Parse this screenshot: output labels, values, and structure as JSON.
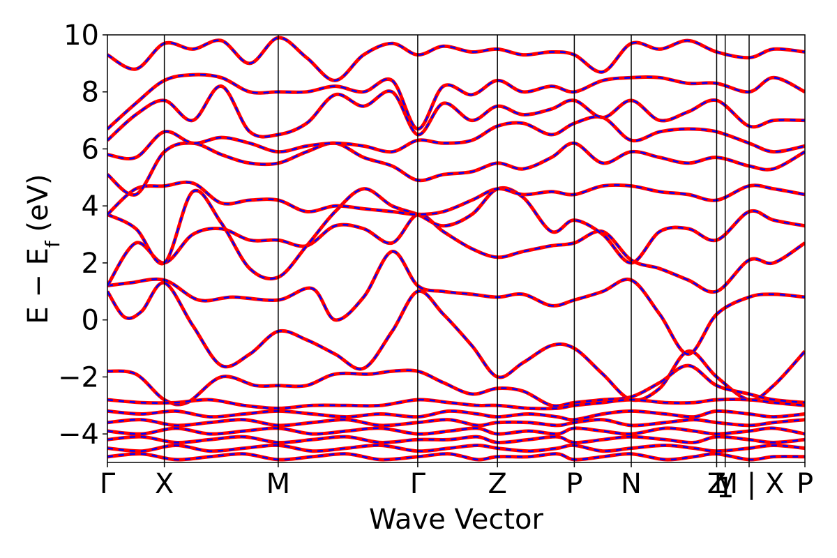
{
  "chart_data": {
    "type": "line",
    "xlabel": "Wave Vector",
    "ylabel_main": "E − E",
    "ylabel_sub": "f",
    "ylabel_unit": " (eV)",
    "ylim": [
      -5,
      10
    ],
    "xlim": [
      0,
      12.25
    ],
    "yticks": [
      10,
      8,
      6,
      4,
      2,
      0,
      -2,
      -4
    ],
    "ytick_labels": [
      "10",
      "8",
      "6",
      "4",
      "2",
      "0",
      "−2",
      "−4"
    ],
    "kpoints": [
      {
        "label": "Γ",
        "x": 0
      },
      {
        "label": "X",
        "x": 1.0
      },
      {
        "label": "M",
        "x": 3.0
      },
      {
        "label": "Γ",
        "x": 5.45
      },
      {
        "label": "Z",
        "x": 6.85
      },
      {
        "label": "P",
        "x": 8.2
      },
      {
        "label": "N",
        "x": 9.2
      },
      {
        "label": "Z",
        "x": 10.7
      },
      {
        "label": "1",
        "x": 10.85
      },
      {
        "label": "M | X",
        "x": 11.27
      },
      {
        "label": "P",
        "x": 12.25
      }
    ],
    "colors": {
      "solid": "#ff0000",
      "dashed": "#0000ff",
      "vline": "#000000"
    },
    "series": [
      {
        "x": [
          0,
          0.3,
          0.6,
          1.0,
          1.5,
          2.0,
          2.5,
          3.0,
          3.5,
          4.0,
          4.5,
          5.0,
          5.45,
          5.9,
          6.4,
          6.85,
          7.3,
          7.8,
          8.2,
          8.7,
          9.2,
          9.7,
          10.2,
          10.7,
          11.27,
          11.7,
          12.25
        ],
        "y": [
          1.0,
          0.1,
          0.3,
          1.3,
          -0.2,
          -1.6,
          -1.2,
          -0.4,
          -0.7,
          -1.2,
          -1.7,
          -0.4,
          1.0,
          0.2,
          -0.9,
          -2.0,
          -1.5,
          -0.9,
          -1.0,
          -1.9,
          -2.8,
          -2.4,
          -1.1,
          -2.0,
          -2.8,
          -2.3,
          -1.1
        ]
      },
      {
        "x": [
          0,
          0.4,
          1.0,
          1.6,
          2.2,
          3.0,
          3.6,
          4.0,
          4.5,
          5.0,
          5.45,
          5.9,
          6.4,
          6.85,
          7.3,
          7.8,
          8.2,
          8.7,
          9.2,
          9.7,
          10.2,
          10.7,
          11.27,
          11.7,
          12.25
        ],
        "y": [
          1.2,
          1.3,
          1.4,
          0.7,
          0.8,
          0.7,
          1.1,
          0.0,
          0.8,
          2.4,
          1.2,
          1.0,
          0.9,
          0.8,
          0.9,
          0.5,
          0.7,
          1.0,
          1.4,
          0.2,
          -1.2,
          0.2,
          0.8,
          0.9,
          0.8
        ]
      },
      {
        "x": [
          0,
          0.5,
          1.0,
          1.4,
          2.0,
          2.6,
          3.0,
          3.5,
          4.0,
          4.6,
          5.0,
          5.45,
          5.9,
          6.4,
          6.85,
          7.3,
          7.8,
          8.2,
          8.7,
          9.2,
          9.7,
          10.2,
          10.7,
          11.27,
          11.7,
          12.25
        ],
        "y": [
          -1.8,
          -1.9,
          -2.8,
          -2.9,
          -2.0,
          -2.3,
          -2.3,
          -2.3,
          -1.9,
          -1.9,
          -1.8,
          -1.8,
          -2.2,
          -2.6,
          -2.4,
          -2.5,
          -3.0,
          -2.9,
          -2.8,
          -2.7,
          -2.2,
          -1.6,
          -2.3,
          -2.6,
          -2.8,
          -2.9
        ]
      },
      {
        "x": [
          0,
          0.5,
          1.0,
          1.5,
          2.0,
          2.5,
          3.0,
          3.5,
          4.0,
          4.5,
          5.0,
          5.45,
          5.9,
          6.4,
          6.85,
          7.3,
          7.8,
          8.2,
          8.7,
          9.2,
          9.7,
          10.2,
          10.7,
          11.27,
          11.7,
          12.25
        ],
        "y": [
          1.2,
          2.7,
          2.0,
          3.0,
          3.2,
          2.8,
          2.8,
          2.6,
          3.3,
          3.2,
          2.7,
          3.7,
          3.1,
          2.5,
          2.2,
          2.4,
          2.6,
          2.7,
          3.1,
          2.1,
          1.8,
          1.4,
          1.0,
          2.1,
          2.0,
          2.7
        ]
      },
      {
        "x": [
          0,
          0.5,
          1.0,
          1.5,
          2.0,
          2.5,
          3.0,
          3.5,
          4.0,
          4.5,
          5.0,
          5.45,
          5.9,
          6.4,
          6.85,
          7.3,
          7.8,
          8.2,
          8.7,
          9.2,
          9.7,
          10.2,
          10.7,
          11.27,
          11.7,
          12.25
        ],
        "y": [
          3.7,
          3.2,
          2.0,
          4.5,
          3.4,
          1.8,
          1.5,
          2.6,
          3.8,
          4.6,
          4.0,
          3.7,
          3.3,
          3.7,
          4.6,
          4.3,
          3.1,
          3.5,
          3.0,
          2.0,
          3.1,
          3.2,
          2.8,
          3.8,
          3.5,
          3.3
        ]
      },
      {
        "x": [
          0,
          0.5,
          1.0,
          1.5,
          2.0,
          2.5,
          3.0,
          3.5,
          4.0,
          4.5,
          5.0,
          5.45,
          5.9,
          6.4,
          6.85,
          7.3,
          7.8,
          8.2,
          8.7,
          9.2,
          9.7,
          10.2,
          10.7,
          11.27,
          11.7,
          12.25
        ],
        "y": [
          3.7,
          4.6,
          4.7,
          4.8,
          4.1,
          4.2,
          4.2,
          3.8,
          4.0,
          3.9,
          3.8,
          3.7,
          3.8,
          4.2,
          4.6,
          4.4,
          4.5,
          4.4,
          4.7,
          4.7,
          4.5,
          4.4,
          4.2,
          4.7,
          4.6,
          4.4
        ]
      },
      {
        "x": [
          0,
          0.5,
          1.0,
          1.5,
          2.0,
          2.5,
          3.0,
          3.5,
          4.0,
          4.5,
          5.0,
          5.45,
          5.9,
          6.4,
          6.85,
          7.3,
          7.8,
          8.2,
          8.7,
          9.2,
          9.7,
          10.2,
          10.7,
          11.27,
          11.7,
          12.25
        ],
        "y": [
          5.1,
          4.4,
          5.9,
          6.2,
          5.8,
          5.5,
          5.5,
          5.9,
          6.2,
          5.7,
          5.4,
          4.9,
          5.1,
          5.2,
          5.5,
          5.3,
          5.7,
          6.2,
          5.5,
          5.9,
          5.7,
          5.5,
          5.7,
          5.4,
          5.3,
          5.9
        ]
      },
      {
        "x": [
          0,
          0.5,
          1.0,
          1.5,
          2.0,
          2.5,
          3.0,
          3.5,
          4.0,
          4.5,
          5.0,
          5.45,
          5.9,
          6.4,
          6.85,
          7.3,
          7.8,
          8.2,
          8.7,
          9.2,
          9.7,
          10.2,
          10.7,
          11.27,
          11.7,
          12.25
        ],
        "y": [
          5.8,
          5.7,
          6.6,
          6.2,
          6.4,
          6.2,
          5.9,
          6.1,
          6.2,
          6.1,
          5.9,
          6.3,
          6.2,
          6.3,
          6.8,
          6.9,
          6.5,
          6.9,
          7.1,
          6.3,
          6.6,
          6.7,
          6.6,
          6.2,
          5.9,
          6.1
        ]
      },
      {
        "x": [
          0,
          0.5,
          1.0,
          1.5,
          2.0,
          2.5,
          3.0,
          3.5,
          4.0,
          4.5,
          5.0,
          5.45,
          5.9,
          6.4,
          6.85,
          7.3,
          7.8,
          8.2,
          8.7,
          9.2,
          9.7,
          10.2,
          10.7,
          11.27,
          11.7,
          12.25
        ],
        "y": [
          6.3,
          7.2,
          7.7,
          7.0,
          8.2,
          6.6,
          6.5,
          6.9,
          7.9,
          7.5,
          8.0,
          6.5,
          7.6,
          7.0,
          7.5,
          7.2,
          7.4,
          7.7,
          7.1,
          7.7,
          7.0,
          7.3,
          7.7,
          6.8,
          7.0,
          7.0
        ]
      },
      {
        "x": [
          0,
          0.5,
          1.0,
          1.5,
          2.0,
          2.5,
          3.0,
          3.5,
          4.0,
          4.5,
          5.0,
          5.45,
          5.9,
          6.4,
          6.85,
          7.3,
          7.8,
          8.2,
          8.7,
          9.2,
          9.7,
          10.2,
          10.7,
          11.27,
          11.7,
          12.25
        ],
        "y": [
          6.7,
          7.6,
          8.4,
          8.6,
          8.5,
          8.0,
          8.0,
          8.0,
          8.2,
          8.0,
          8.4,
          6.7,
          8.2,
          7.9,
          8.4,
          8.0,
          8.2,
          8.0,
          8.4,
          8.5,
          8.5,
          8.3,
          8.3,
          8.0,
          8.5,
          8.0
        ]
      },
      {
        "x": [
          0,
          0.5,
          1.0,
          1.5,
          2.0,
          2.5,
          3.0,
          3.5,
          4.0,
          4.5,
          5.0,
          5.45,
          5.9,
          6.4,
          6.85,
          7.3,
          7.8,
          8.2,
          8.7,
          9.2,
          9.7,
          10.2,
          10.7,
          11.27,
          11.7,
          12.25
        ],
        "y": [
          9.3,
          8.8,
          9.7,
          9.5,
          9.8,
          9.0,
          9.9,
          9.2,
          8.4,
          9.3,
          9.7,
          9.3,
          9.6,
          9.4,
          9.5,
          9.3,
          9.4,
          9.3,
          8.7,
          9.7,
          9.5,
          9.8,
          9.4,
          9.2,
          9.5,
          9.4
        ]
      },
      {
        "x": [
          0,
          0.6,
          1.2,
          1.8,
          2.4,
          3.0,
          3.6,
          4.2,
          4.8,
          5.45,
          6.0,
          6.5,
          6.85,
          7.4,
          7.9,
          8.2,
          8.7,
          9.2,
          9.8,
          10.3,
          10.7,
          11.27,
          11.7,
          12.25
        ],
        "y": [
          -2.8,
          -2.9,
          -2.9,
          -2.8,
          -3.0,
          -3.1,
          -3.0,
          -3.0,
          -3.0,
          -2.8,
          -2.9,
          -3.0,
          -3.0,
          -3.1,
          -3.1,
          -3.0,
          -2.9,
          -2.8,
          -2.9,
          -2.9,
          -2.8,
          -2.8,
          -2.9,
          -3.0
        ]
      },
      {
        "x": [
          0,
          0.6,
          1.2,
          1.8,
          2.4,
          3.0,
          3.6,
          4.2,
          4.8,
          5.45,
          6.0,
          6.5,
          6.85,
          7.4,
          7.9,
          8.2,
          8.7,
          9.2,
          9.8,
          10.3,
          10.7,
          11.27,
          11.7,
          12.25
        ],
        "y": [
          -3.2,
          -3.3,
          -3.2,
          -3.4,
          -3.3,
          -3.2,
          -3.3,
          -3.4,
          -3.3,
          -3.4,
          -3.2,
          -3.3,
          -3.4,
          -3.3,
          -3.4,
          -3.5,
          -3.3,
          -3.2,
          -3.3,
          -3.4,
          -3.2,
          -3.3,
          -3.4,
          -3.3
        ]
      },
      {
        "x": [
          0,
          0.6,
          1.2,
          1.8,
          2.4,
          3.0,
          3.6,
          4.2,
          4.8,
          5.45,
          6.0,
          6.5,
          6.85,
          7.4,
          7.9,
          8.2,
          8.7,
          9.2,
          9.8,
          10.3,
          10.7,
          11.27,
          11.7,
          12.25
        ],
        "y": [
          -3.6,
          -3.5,
          -3.7,
          -3.6,
          -3.5,
          -3.7,
          -3.6,
          -3.5,
          -3.7,
          -3.6,
          -3.5,
          -3.7,
          -3.6,
          -3.6,
          -3.7,
          -3.6,
          -3.5,
          -3.7,
          -3.6,
          -3.5,
          -3.6,
          -3.7,
          -3.6,
          -3.5
        ]
      },
      {
        "x": [
          0,
          0.6,
          1.2,
          1.8,
          2.4,
          3.0,
          3.6,
          4.2,
          4.8,
          5.45,
          6.0,
          6.5,
          6.85,
          7.4,
          7.9,
          8.2,
          8.7,
          9.2,
          9.8,
          10.3,
          10.7,
          11.27,
          11.7,
          12.25
        ],
        "y": [
          -3.9,
          -4.0,
          -3.8,
          -4.0,
          -3.9,
          -3.8,
          -4.0,
          -3.9,
          -3.8,
          -4.0,
          -3.9,
          -3.8,
          -4.0,
          -3.9,
          -4.0,
          -3.8,
          -3.9,
          -4.0,
          -3.8,
          -3.9,
          -4.0,
          -3.9,
          -3.8,
          -4.0
        ]
      },
      {
        "x": [
          0,
          0.6,
          1.2,
          1.8,
          2.4,
          3.0,
          3.6,
          4.2,
          4.8,
          5.45,
          6.0,
          6.5,
          6.85,
          7.4,
          7.9,
          8.2,
          8.7,
          9.2,
          9.8,
          10.3,
          10.7,
          11.27,
          11.7,
          12.25
        ],
        "y": [
          -4.2,
          -4.1,
          -4.3,
          -4.2,
          -4.1,
          -4.3,
          -4.2,
          -4.1,
          -4.3,
          -4.2,
          -4.2,
          -4.1,
          -4.3,
          -4.2,
          -4.1,
          -4.3,
          -4.2,
          -4.1,
          -4.2,
          -4.3,
          -4.1,
          -4.2,
          -4.3,
          -4.2
        ]
      },
      {
        "x": [
          0,
          0.6,
          1.2,
          1.8,
          2.4,
          3.0,
          3.6,
          4.2,
          4.8,
          5.45,
          6.0,
          6.5,
          6.85,
          7.4,
          7.9,
          8.2,
          8.7,
          9.2,
          9.8,
          10.3,
          10.7,
          11.27,
          11.7,
          12.25
        ],
        "y": [
          -4.5,
          -4.6,
          -4.4,
          -4.6,
          -4.5,
          -4.4,
          -4.6,
          -4.5,
          -4.4,
          -4.6,
          -4.5,
          -4.4,
          -4.5,
          -4.6,
          -4.5,
          -4.4,
          -4.6,
          -4.5,
          -4.4,
          -4.5,
          -4.6,
          -4.5,
          -4.4,
          -4.5
        ]
      },
      {
        "x": [
          0,
          0.6,
          1.2,
          1.8,
          2.4,
          3.0,
          3.6,
          4.2,
          4.8,
          5.45,
          6.0,
          6.5,
          6.85,
          7.4,
          7.9,
          8.2,
          8.7,
          9.2,
          9.8,
          10.3,
          10.7,
          11.27,
          11.7,
          12.25
        ],
        "y": [
          -4.8,
          -4.7,
          -4.9,
          -4.8,
          -4.7,
          -4.9,
          -4.8,
          -4.7,
          -4.9,
          -4.8,
          -4.7,
          -4.9,
          -4.8,
          -4.8,
          -4.7,
          -4.9,
          -4.8,
          -4.7,
          -4.9,
          -4.8,
          -4.7,
          -4.9,
          -4.8,
          -4.8
        ]
      }
    ]
  }
}
